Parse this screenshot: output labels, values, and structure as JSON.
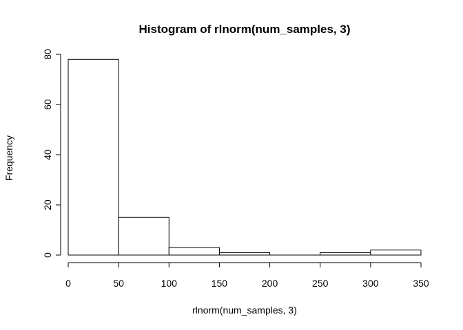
{
  "chart_data": {
    "type": "bar",
    "histogram": true,
    "title": "Histogram of rlnorm(num_samples, 3)",
    "xlabel": "rlnorm(num_samples, 3)",
    "ylabel": "Frequency",
    "xlim": [
      0,
      350
    ],
    "ylim": [
      0,
      80
    ],
    "x_ticks": [
      0,
      50,
      100,
      150,
      200,
      250,
      300,
      350
    ],
    "y_ticks": [
      0,
      20,
      40,
      60,
      80
    ],
    "bins": [
      {
        "from": 0,
        "to": 50,
        "count": 78
      },
      {
        "from": 50,
        "to": 100,
        "count": 15
      },
      {
        "from": 100,
        "to": 150,
        "count": 3
      },
      {
        "from": 150,
        "to": 200,
        "count": 1
      },
      {
        "from": 200,
        "to": 250,
        "count": 0
      },
      {
        "from": 250,
        "to": 300,
        "count": 1
      },
      {
        "from": 300,
        "to": 350,
        "count": 2
      }
    ],
    "bar_fill": "#ffffff",
    "bar_stroke": "#000000",
    "grid": false,
    "legend": "none"
  }
}
